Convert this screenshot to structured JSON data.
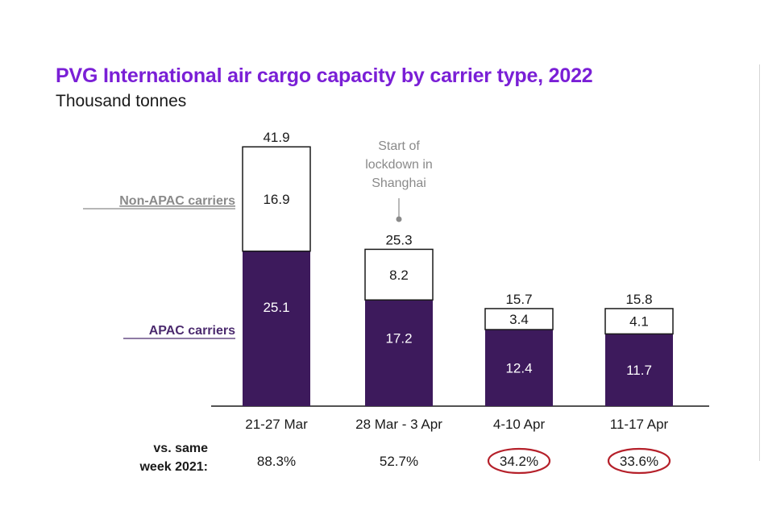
{
  "chart_data": {
    "type": "bar",
    "stacked": true,
    "title": "PVG International air cargo capacity by carrier type, 2022",
    "subtitle": "Thousand tonnes",
    "categories": [
      "21-27 Mar",
      "28 Mar - 3 Apr",
      "4-10 Apr",
      "11-17 Apr"
    ],
    "series": [
      {
        "name": "APAC carriers",
        "values": [
          25.1,
          17.2,
          12.4,
          11.7
        ],
        "color": "#3d1a5c"
      },
      {
        "name": "Non-APAC carriers",
        "values": [
          16.9,
          8.2,
          3.4,
          4.1
        ],
        "color": "#ffffff"
      }
    ],
    "totals": [
      "41.9",
      "25.3",
      "15.7",
      "15.8"
    ],
    "value_labels": {
      "apac": [
        "25.1",
        "17.2",
        "12.4",
        "11.7"
      ],
      "non_apac": [
        "16.9",
        "8.2",
        "3.4",
        "4.1"
      ]
    },
    "ylim": [
      0,
      41.9
    ],
    "grid": false,
    "annotation": {
      "lines": [
        "Start of",
        "lockdown in",
        "Shanghai"
      ],
      "category_index": 1,
      "color": "#8a8a8a"
    },
    "comparison": {
      "label_lines": [
        "vs. same",
        "week 2021:"
      ],
      "values": [
        "88.3%",
        "52.7%",
        "34.2%",
        "33.6%"
      ],
      "circled": [
        false,
        false,
        true,
        true
      ],
      "circle_color": "#b5202a"
    },
    "accent_color": "#7a1fd6",
    "legend_color": "#4b2a6e",
    "nonapac_legend_color": "#8a8a8a"
  }
}
